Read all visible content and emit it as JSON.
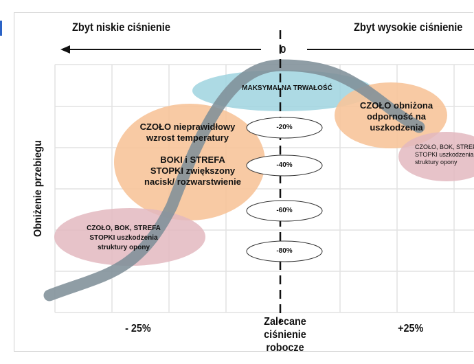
{
  "header": {
    "left_label": "Zbyt niskie ciśnienie",
    "right_label": "Zbyt wysokie ciśnienie",
    "zero_label": "0"
  },
  "axes": {
    "y_label": "Obniżenie przebiegu",
    "x_left": "- 25%",
    "x_center": "Zalecane ciśnienie robocze",
    "x_right": "+25%"
  },
  "zones": {
    "max": "MAKSYMALNA TRWAŁOŚĆ",
    "czolo_nie": "CZOŁO nieprawidłowy wzrost temperatury",
    "boki": "BOKI i STREFA STOPKI zwiększony nacisk/ rozwarstwienie",
    "czolo_obn": "CZOŁO obniżona odporność na uszkodzenia",
    "right_small": "CZOŁO, BOK, STREFA STOPKI uszkodzenia struktury opony",
    "left_small": "CZOŁO, BOK, STREFA STOPKI uszkodzenia struktury opony"
  },
  "levels": [
    "-20%",
    "-40%",
    "-60%",
    "-80%"
  ],
  "colors": {
    "orange_zone": "#f7c49a",
    "pink_zone": "#e3b9bf",
    "blue_zone": "#9fd3df",
    "curve": "#8a9aa3",
    "grid": "#e4e4e4"
  }
}
